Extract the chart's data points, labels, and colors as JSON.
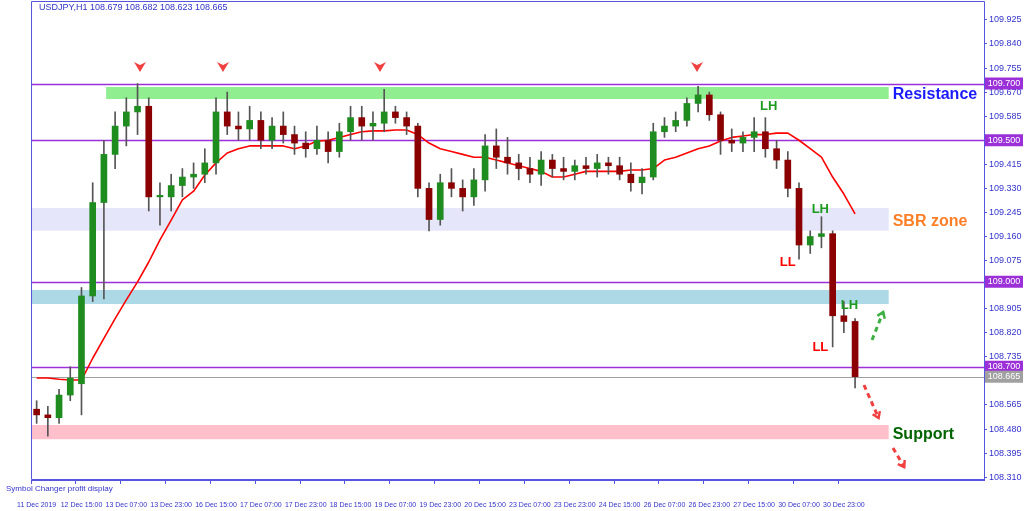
{
  "chart_data": {
    "type": "candlestick",
    "title": "USDJPY,H1 108.679 108.682 108.623 108.665",
    "categories": [
      "11 Dec 2019",
      null,
      null,
      null,
      "12 Dec 15:00",
      null,
      null,
      null,
      "13 Dec 07:00",
      null,
      null,
      null,
      "13 Dec 23:00",
      null,
      null,
      null,
      "16 Dec 15:00",
      null,
      null,
      null,
      "17 Dec 07:00",
      null,
      null,
      null,
      "17 Dec 23:00",
      null,
      null,
      null,
      "18 Dec 15:00",
      null,
      null,
      null,
      "19 Dec 07:00",
      null,
      null,
      null,
      "19 Dec 23:00",
      null,
      null,
      null,
      "20 Dec 15:00",
      null,
      null,
      null,
      "23 Dec 07:00",
      null,
      null,
      null,
      "23 Dec 23:00",
      null,
      null,
      null,
      "24 Dec 15:00",
      null,
      null,
      null,
      "26 Dec 07:00",
      null,
      null,
      null,
      "26 Dec 23:00",
      null,
      null,
      null,
      "27 Dec 15:00",
      null,
      null,
      null,
      "30 Dec 07:00",
      null,
      null,
      null,
      "30 Dec 23:00",
      null,
      null,
      null,
      null,
      null,
      null,
      null,
      null,
      null,
      null,
      null,
      null
    ],
    "ohlc": [
      [
        108.55,
        108.58,
        108.5,
        108.53
      ],
      [
        108.53,
        108.56,
        108.455,
        108.52
      ],
      [
        108.52,
        108.62,
        108.5,
        108.6
      ],
      [
        108.6,
        108.7,
        108.58,
        108.66
      ],
      [
        108.64,
        108.98,
        108.53,
        108.95
      ],
      [
        108.95,
        109.35,
        108.93,
        109.28
      ],
      [
        109.28,
        109.5,
        108.94,
        109.45
      ],
      [
        109.45,
        109.6,
        109.4,
        109.55
      ],
      [
        109.55,
        109.65,
        109.48,
        109.6
      ],
      [
        109.6,
        109.7,
        109.52,
        109.62
      ],
      [
        109.62,
        109.65,
        109.25,
        109.3
      ],
      [
        109.3,
        109.35,
        109.2,
        109.3
      ],
      [
        109.3,
        109.38,
        109.25,
        109.34
      ],
      [
        109.34,
        109.4,
        109.3,
        109.37
      ],
      [
        109.37,
        109.42,
        109.33,
        109.38
      ],
      [
        109.38,
        109.47,
        109.35,
        109.42
      ],
      [
        109.42,
        109.65,
        109.38,
        109.6
      ],
      [
        109.6,
        109.67,
        109.52,
        109.55
      ],
      [
        109.55,
        109.6,
        109.5,
        109.54
      ],
      [
        109.54,
        109.62,
        109.5,
        109.57
      ],
      [
        109.57,
        109.6,
        109.47,
        109.5
      ],
      [
        109.5,
        109.58,
        109.47,
        109.55
      ],
      [
        109.55,
        109.6,
        109.49,
        109.52
      ],
      [
        109.52,
        109.55,
        109.45,
        109.49
      ],
      [
        109.49,
        109.53,
        109.44,
        109.47
      ],
      [
        109.47,
        109.55,
        109.45,
        109.5
      ],
      [
        109.5,
        109.53,
        109.42,
        109.46
      ],
      [
        109.46,
        109.56,
        109.44,
        109.53
      ],
      [
        109.53,
        109.62,
        109.5,
        109.58
      ],
      [
        109.58,
        109.62,
        109.5,
        109.55
      ],
      [
        109.55,
        109.6,
        109.5,
        109.56
      ],
      [
        109.56,
        109.68,
        109.53,
        109.6
      ],
      [
        109.6,
        109.62,
        109.56,
        109.58
      ],
      [
        109.58,
        109.6,
        109.52,
        109.55
      ],
      [
        109.55,
        109.56,
        109.3,
        109.33
      ],
      [
        109.33,
        109.35,
        109.18,
        109.22
      ],
      [
        109.22,
        109.38,
        109.2,
        109.35
      ],
      [
        109.35,
        109.4,
        109.3,
        109.33
      ],
      [
        109.33,
        109.36,
        109.25,
        109.3
      ],
      [
        109.3,
        109.4,
        109.27,
        109.36
      ],
      [
        109.36,
        109.52,
        109.32,
        109.48
      ],
      [
        109.48,
        109.54,
        109.4,
        109.44
      ],
      [
        109.44,
        109.51,
        109.38,
        109.42
      ],
      [
        109.42,
        109.45,
        109.36,
        109.4
      ],
      [
        109.4,
        109.44,
        109.35,
        109.38
      ],
      [
        109.38,
        109.46,
        109.34,
        109.43
      ],
      [
        109.43,
        109.45,
        109.37,
        109.4
      ],
      [
        109.4,
        109.44,
        109.36,
        109.39
      ],
      [
        109.39,
        109.43,
        109.36,
        109.41
      ],
      [
        109.41,
        109.44,
        109.38,
        109.4
      ],
      [
        109.4,
        109.45,
        109.37,
        109.42
      ],
      [
        109.42,
        109.44,
        109.38,
        109.41
      ],
      [
        109.41,
        109.44,
        109.36,
        109.38
      ],
      [
        109.38,
        109.42,
        109.32,
        109.35
      ],
      [
        109.35,
        109.4,
        109.31,
        109.37
      ],
      [
        109.37,
        109.56,
        109.36,
        109.53
      ],
      [
        109.53,
        109.58,
        109.51,
        109.55
      ],
      [
        109.55,
        109.6,
        109.53,
        109.57
      ],
      [
        109.57,
        109.65,
        109.55,
        109.63
      ],
      [
        109.63,
        109.69,
        109.6,
        109.66
      ],
      [
        109.66,
        109.67,
        109.57,
        109.59
      ],
      [
        109.59,
        109.6,
        109.45,
        109.5
      ],
      [
        109.5,
        109.54,
        109.46,
        109.49
      ],
      [
        109.49,
        109.53,
        109.46,
        109.51
      ],
      [
        109.51,
        109.58,
        109.46,
        109.53
      ],
      [
        109.53,
        109.58,
        109.44,
        109.47
      ],
      [
        109.47,
        109.5,
        109.4,
        109.43
      ],
      [
        109.43,
        109.46,
        109.3,
        109.33
      ],
      [
        109.33,
        109.35,
        109.08,
        109.13
      ],
      [
        109.13,
        109.18,
        109.1,
        109.16
      ],
      [
        109.16,
        109.23,
        109.12,
        109.17
      ],
      [
        109.17,
        109.18,
        108.77,
        108.88
      ],
      [
        108.88,
        108.93,
        108.82,
        108.86
      ],
      [
        108.86,
        108.87,
        108.625,
        108.665
      ],
      null,
      null,
      null,
      null,
      null,
      null,
      null,
      null,
      null,
      null,
      null
    ],
    "series": [
      {
        "type": "line",
        "color": "#ff0000",
        "values": [
          108.66,
          108.66,
          108.656,
          108.653,
          108.653,
          108.73,
          108.8,
          108.87,
          108.936,
          109.0,
          109.07,
          109.148,
          109.218,
          109.289,
          109.32,
          109.377,
          109.42,
          109.455,
          109.47,
          109.48,
          109.48,
          109.48,
          109.48,
          109.47,
          109.48,
          109.497,
          109.5,
          109.51,
          109.52,
          109.53,
          109.533,
          109.533,
          109.536,
          109.536,
          109.52,
          109.49,
          109.47,
          109.46,
          109.45,
          109.44,
          109.44,
          109.43,
          109.42,
          109.41,
          109.4,
          109.39,
          109.37,
          109.37,
          109.38,
          109.39,
          109.39,
          109.39,
          109.39,
          109.395,
          109.395,
          109.4,
          109.43,
          109.44,
          109.455,
          109.47,
          109.48,
          109.497,
          109.51,
          109.515,
          109.52,
          109.52,
          109.525,
          109.525,
          109.5,
          109.47,
          109.44,
          109.37,
          109.31,
          109.24,
          null,
          null,
          null,
          null,
          null,
          null,
          null,
          null,
          null,
          null,
          null
        ]
      }
    ],
    "ylim": [
      108.3,
      109.96
    ],
    "yticks": [
      {
        "value": 108.31,
        "label": "108.310"
      },
      {
        "value": 108.395,
        "label": "108.395"
      },
      {
        "value": 108.48,
        "label": "108.480"
      },
      {
        "value": 108.565,
        "label": "108.565"
      },
      {
        "value": 108.735,
        "label": "108.735"
      },
      {
        "value": 108.82,
        "label": "108.820"
      },
      {
        "value": 108.905,
        "label": "108.905"
      },
      {
        "value": 109.075,
        "label": "109.075"
      },
      {
        "value": 109.16,
        "label": "109.160"
      },
      {
        "value": 109.245,
        "label": "109.245"
      },
      {
        "value": 109.33,
        "label": "109.330"
      },
      {
        "value": 109.415,
        "label": "109.415"
      },
      {
        "value": 109.585,
        "label": "109.585"
      },
      {
        "value": 109.67,
        "label": "109.670"
      },
      {
        "value": 109.755,
        "label": "109.755"
      },
      {
        "value": 109.84,
        "label": "109.840"
      },
      {
        "value": 109.925,
        "label": "109.925"
      }
    ],
    "ref_lines": [
      {
        "axis": "y",
        "value": 109.7,
        "label": "109.700",
        "color": "#9b30d9"
      },
      {
        "axis": "y",
        "value": 109.5,
        "label": "109.500",
        "color": "#9b30d9"
      },
      {
        "axis": "y",
        "value": 109.0,
        "label": "109.000",
        "color": "#9b30d9"
      },
      {
        "axis": "y",
        "value": 108.7,
        "label": "108.700",
        "color": "#9b30d9"
      },
      {
        "axis": "y",
        "value": 108.665,
        "label": "108.665",
        "color": "#a0a0a0"
      }
    ],
    "bands": [
      {
        "axis": "y",
        "from": 109.646,
        "to": 109.688,
        "label": "Resistance",
        "color": "#90ee90"
      },
      {
        "axis": "y",
        "from": 109.18,
        "to": 109.261,
        "label": "SBR zone",
        "color": "#e6e6fa"
      },
      {
        "axis": "y",
        "from": 108.922,
        "to": 108.971,
        "color": "#add8e6"
      },
      {
        "axis": "y",
        "from": 108.444,
        "to": 108.494,
        "label": "Support",
        "color": "#ffc0cb"
      }
    ],
    "annotations": [
      "LH",
      "LH",
      "LL",
      "LH",
      "LL",
      "Symbol Changer profit display"
    ]
  }
}
